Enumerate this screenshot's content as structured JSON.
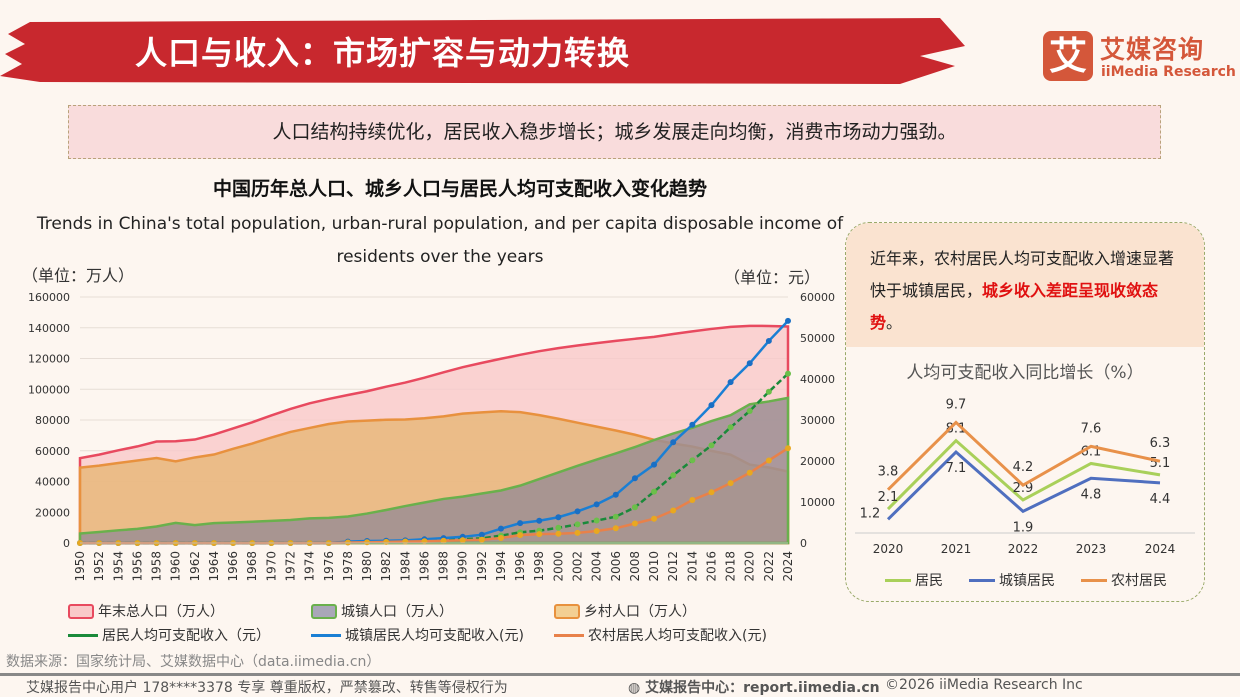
{
  "header": {
    "title": "人口与收入：市场扩容与动力转换",
    "logo_mark": "艾",
    "logo_cn": "艾媒咨询",
    "logo_en": "iiMedia Research",
    "brand_color": "#c8282e"
  },
  "callout": "人口结构持续优化，居民收入稳步增长；城乡发展走向均衡，消费市场动力强劲。",
  "panel": {
    "text_normal": "近年来，农村居民人均可支配收入增速显著快于城镇居民，",
    "text_highlight": "城乡收入差距呈现收敛态势",
    "text_end": "。"
  },
  "chart_data": [
    {
      "type": "area+line",
      "title": "中国历年总人口、城乡人口与居民人均可支配收入变化趋势",
      "subtitle": "Trends in China's total population, urban-rural population, and per capita disposable income of residents over the years",
      "ylabel_left": "（单位：万人）",
      "ylabel_right": "（单位：元）",
      "ylim_left": [
        0,
        160000
      ],
      "ylim_right": [
        0,
        60000
      ],
      "yticks_left": [
        "0",
        "20000",
        "40000",
        "60000",
        "80000",
        "100000",
        "120000",
        "140000",
        "160000"
      ],
      "yticks_right": [
        "0",
        "10000",
        "20000",
        "30000",
        "40000",
        "50000",
        "60000"
      ],
      "x": [
        1950,
        1952,
        1954,
        1956,
        1958,
        1960,
        1962,
        1964,
        1966,
        1968,
        1970,
        1972,
        1974,
        1976,
        1978,
        1980,
        1982,
        1984,
        1986,
        1988,
        1990,
        1992,
        1994,
        1996,
        1998,
        2000,
        2002,
        2004,
        2006,
        2008,
        2010,
        2012,
        2014,
        2016,
        2018,
        2020,
        2022,
        2024
      ],
      "series": [
        {
          "name": "年末总人口（万人）",
          "kind": "area",
          "axis": "left",
          "color": "#e84a5f",
          "fill": "#f9c9c9",
          "values": [
            55196,
            57482,
            60266,
            62828,
            65994,
            66207,
            67295,
            70499,
            74542,
            78534,
            82992,
            87177,
            90859,
            93717,
            96259,
            98705,
            101654,
            104357,
            107507,
            111026,
            114333,
            117171,
            119850,
            122389,
            124761,
            126743,
            128453,
            129988,
            131448,
            132802,
            134091,
            135922,
            137646,
            139232,
            140541,
            141212,
            141175,
            140828
          ]
        },
        {
          "name": "乡村人口（万人）",
          "kind": "area",
          "axis": "left",
          "color": "#e8913e",
          "fill": "#e7b676",
          "values": [
            49027,
            50319,
            52017,
            53643,
            55273,
            53134,
            55636,
            57549,
            61229,
            64696,
            68568,
            72242,
            74829,
            77376,
            79014,
            79565,
            80174,
            80340,
            81141,
            82365,
            84138,
            84996,
            85681,
            85085,
            83153,
            80837,
            78241,
            75705,
            73160,
            70399,
            67113,
            64740,
            62730,
            59934,
            57404,
            50992,
            49104,
            46478
          ]
        },
        {
          "name": "城镇人口（万人）",
          "kind": "area",
          "axis": "left",
          "color": "#6ab04c",
          "fill": "#9c8e93",
          "values": [
            6169,
            7163,
            8249,
            9185,
            10721,
            13073,
            11659,
            12950,
            13313,
            13838,
            14424,
            14935,
            16030,
            16341,
            17245,
            19140,
            21480,
            24017,
            26366,
            28661,
            30195,
            32175,
            34169,
            37304,
            41608,
            45906,
            50212,
            54283,
            58288,
            62403,
            66978,
            71182,
            74916,
            79298,
            83137,
            90220,
            92071,
            94350
          ]
        },
        {
          "name": "居民人均可支配收入（元）",
          "kind": "line",
          "axis": "right",
          "color": "#1a8a3a",
          "marker": "#6cbf4a",
          "values": [
            0,
            0,
            0,
            0,
            0,
            0,
            0,
            0,
            0,
            0,
            0,
            0,
            0,
            0,
            171,
            247,
            330,
            430,
            520,
            700,
            904,
            1126,
            1800,
            2600,
            3000,
            3721,
            4532,
            5475,
            6416,
            8707,
            12520,
            16510,
            20167,
            23821,
            28228,
            32189,
            36883,
            41314
          ]
        },
        {
          "name": "城镇居民人均可支配收入(元)",
          "kind": "line",
          "axis": "right",
          "color": "#1a7fd4",
          "marker": "#1a6fc4",
          "values": [
            0,
            0,
            0,
            0,
            0,
            0,
            0,
            0,
            0,
            0,
            0,
            0,
            0,
            0,
            343,
            478,
            535,
            652,
            900,
            1180,
            1510,
            2027,
            3496,
            4839,
            5425,
            6280,
            7703,
            9422,
            11759,
            15781,
            19109,
            24565,
            28844,
            33616,
            39251,
            43834,
            49283,
            54188
          ]
        },
        {
          "name": "农村居民人均可支配收入(元)",
          "kind": "line",
          "axis": "right",
          "color": "#e8814a",
          "marker": "#e8a820",
          "values": [
            0,
            0,
            0,
            0,
            0,
            0,
            0,
            0,
            0,
            0,
            0,
            0,
            0,
            0,
            134,
            191,
            270,
            355,
            424,
            545,
            686,
            784,
            1221,
            1926,
            2162,
            2253,
            2476,
            2936,
            3587,
            4761,
            5919,
            7917,
            10489,
            12363,
            14617,
            17131,
            20133,
            23119
          ]
        }
      ],
      "legend_order": [
        0,
        2,
        1,
        3,
        4,
        5
      ],
      "grid": true,
      "legend": "bottom"
    },
    {
      "type": "line",
      "title": "人均可支配收入同比增长（%）",
      "categories": [
        "2020",
        "2021",
        "2022",
        "2023",
        "2024"
      ],
      "series": [
        {
          "name": "居民",
          "color": "#a9d05a",
          "values": [
            2.1,
            8.1,
            2.9,
            6.1,
            5.1
          ]
        },
        {
          "name": "城镇居民",
          "color": "#4f6fbf",
          "values": [
            1.2,
            7.1,
            1.9,
            4.8,
            4.4
          ]
        },
        {
          "name": "农村居民",
          "color": "#e8914a",
          "values": [
            3.8,
            9.7,
            4.2,
            7.6,
            6.3
          ]
        }
      ],
      "legend": "bottom"
    }
  ],
  "source": "数据来源：国家统计局、艾媒数据中心（data.iimedia.cn）",
  "footer": {
    "left": "艾媒报告中心用户 178****3378 专享 尊重版权，严禁篡改、转售等侵权行为",
    "center": "艾媒报告中心：report.iimedia.cn",
    "right": "©2026  iiMedia Research  Inc"
  }
}
